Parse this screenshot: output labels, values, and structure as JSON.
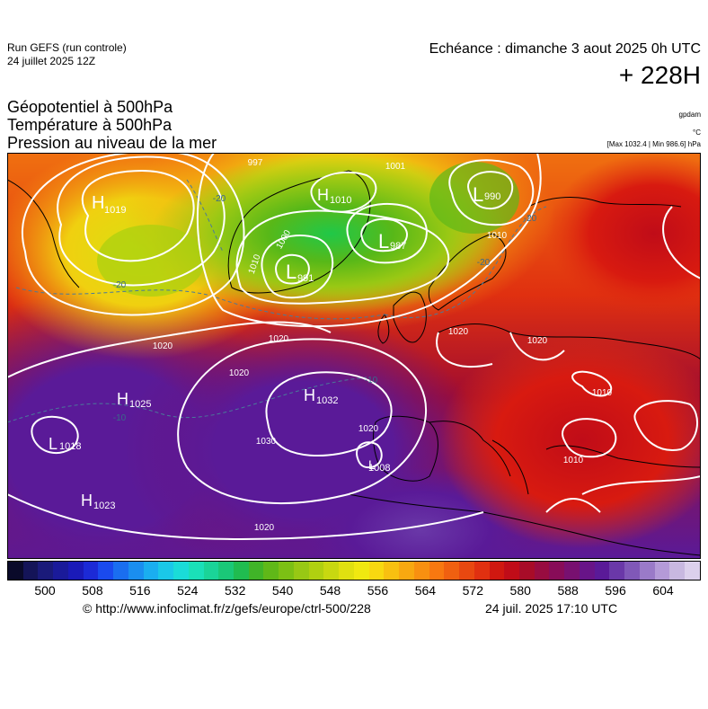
{
  "header": {
    "run_name": "Run GEFS (run controle)",
    "run_date": "24 juillet 2025 12Z",
    "valid_time": "Echéance : dimanche 3 aout 2025 0h UTC",
    "lead_time": "+ 228H"
  },
  "parameters": {
    "geopotential": "Géopotentiel à 500hPa",
    "temperature": "Température à 500hPa",
    "pressure": "Pression au niveau de la mer"
  },
  "units": {
    "geopotential_unit": "gpdam",
    "temperature_unit": "°C",
    "pressure_range": "[Max 1032.4 | Min 986.6] hPa"
  },
  "pressure_centers": [
    {
      "type": "H",
      "value": "1019"
    },
    {
      "type": "H",
      "value": "1010"
    },
    {
      "type": "L",
      "value": "990"
    },
    {
      "type": "L",
      "value": "987"
    },
    {
      "type": "L",
      "value": "991"
    },
    {
      "type": "H",
      "value": "1025"
    },
    {
      "type": "H",
      "value": "1032"
    },
    {
      "type": "L",
      "value": "1018"
    },
    {
      "type": "H",
      "value": "1023"
    },
    {
      "type": "L",
      "value": "1008"
    }
  ],
  "isobar_labels": [
    "997",
    "1001",
    "1000",
    "1010",
    "1020",
    "1020",
    "1020",
    "1020",
    "1020",
    "1030",
    "1020",
    "1020",
    "1010",
    "1010",
    "1010"
  ],
  "isotherm_labels": [
    "-20",
    "-20",
    "-20",
    "-20",
    "-10",
    "-10"
  ],
  "colorbar": {
    "tick_labels": [
      "500",
      "508",
      "516",
      "524",
      "532",
      "540",
      "548",
      "556",
      "564",
      "572",
      "580",
      "588",
      "596",
      "604"
    ],
    "colors": [
      "#0a0a2a",
      "#141458",
      "#1a1a7a",
      "#1a1a9a",
      "#1a1ab8",
      "#1c2ad6",
      "#1a4aee",
      "#1a6ef0",
      "#1a8ef0",
      "#1aaef0",
      "#1ac8e8",
      "#1adcd8",
      "#1ae0b8",
      "#1ad498",
      "#1ac878",
      "#20bc50",
      "#40b428",
      "#60b818",
      "#7cc014",
      "#98c814",
      "#b0d010",
      "#c8d810",
      "#e0e010",
      "#f0e810",
      "#f8d810",
      "#f8c010",
      "#f8a810",
      "#f89010",
      "#f87810",
      "#f06010",
      "#e84810",
      "#e03010",
      "#d01810",
      "#c00c18",
      "#a80c28",
      "#980c40",
      "#880c58",
      "#781070",
      "#681488",
      "#5a1a98",
      "#6a38a8",
      "#8058b8",
      "#9a7ac8",
      "#b49ad8",
      "#c8b8e0",
      "#dcd0ec"
    ]
  },
  "footer": {
    "credit": "© http://www.infoclimat.fr/z/gefs/europe/ctrl-500/228",
    "timestamp": "24 juil. 2025 17:10 UTC"
  }
}
